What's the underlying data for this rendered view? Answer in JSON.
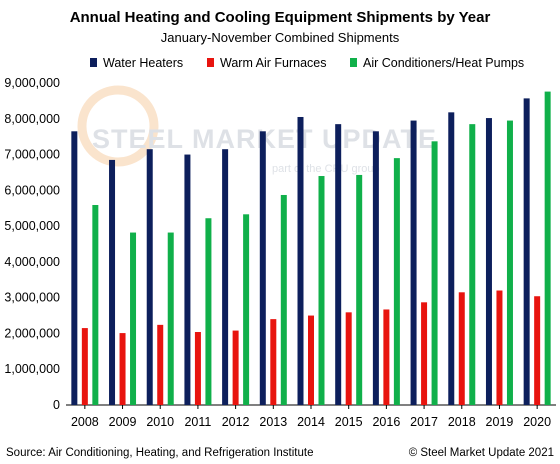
{
  "chart_data": {
    "type": "bar",
    "title": "Annual Heating and Cooling Equipment Shipments by Year",
    "subtitle": "January-November  Combined Shipments",
    "xlabel": "",
    "ylabel": "",
    "ylim": [
      0,
      9000000
    ],
    "yticks": [
      "0",
      "1,000,000",
      "2,000,000",
      "3,000,000",
      "4,000,000",
      "5,000,000",
      "6,000,000",
      "7,000,000",
      "8,000,000",
      "9,000,000"
    ],
    "grid": false,
    "legend_position": "top",
    "categories": [
      "2008",
      "2009",
      "2010",
      "2011",
      "2012",
      "2013",
      "2014",
      "2015",
      "2016",
      "2017",
      "2018",
      "2019",
      "2020"
    ],
    "series": [
      {
        "name": "Water Heaters",
        "color": "#0d1f5c",
        "values": [
          7650000,
          6850000,
          7150000,
          7000000,
          7150000,
          7650000,
          8050000,
          7850000,
          7650000,
          7950000,
          8180000,
          8020000,
          8570000
        ]
      },
      {
        "name": "Warm Air Furnaces",
        "color": "#e8140f",
        "values": [
          2150000,
          2010000,
          2240000,
          2040000,
          2080000,
          2400000,
          2500000,
          2590000,
          2670000,
          2870000,
          3150000,
          3200000,
          3040000
        ]
      },
      {
        "name": "Air Conditioners/Heat Pumps",
        "color": "#10b04a",
        "values": [
          5590000,
          4820000,
          4820000,
          5220000,
          5330000,
          5870000,
          6400000,
          6430000,
          6900000,
          7370000,
          7850000,
          7950000,
          8760000
        ]
      }
    ]
  },
  "watermark": {
    "main": "STEEL MARKET UPDATE",
    "sub": "part of the CRU group"
  },
  "footer": {
    "source": "Source: Air Conditioning, Heating, and Refrigeration Institute",
    "copyright": "© Steel Market Update 2021"
  }
}
